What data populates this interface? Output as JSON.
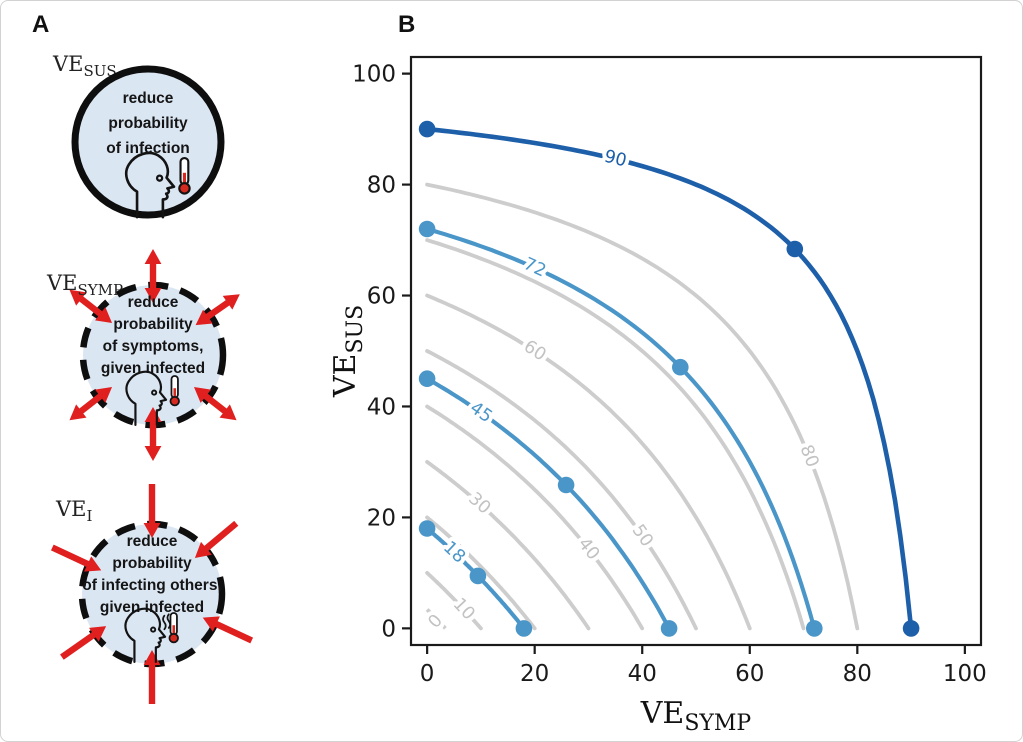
{
  "figure": {
    "panel_a_label": "A",
    "panel_b_label": "B"
  },
  "panel_a": {
    "items": [
      {
        "title_main": "VE",
        "title_sub": "SUS",
        "border": "solid",
        "lines": [
          "reduce",
          "probability",
          "of infection"
        ],
        "icon": "head-with-thermometer",
        "arrows": {
          "type": "none",
          "angles": []
        }
      },
      {
        "title_main": "VE",
        "title_sub": "SYMP",
        "border": "dashed",
        "lines": [
          "reduce",
          "probability",
          "of symptoms,",
          "given infected"
        ],
        "icon": "head-with-thermometer",
        "arrows": {
          "type": "outward-double",
          "angles": [
            90,
            35,
            142,
            218,
            270,
            322
          ]
        }
      },
      {
        "title_main": "VE",
        "title_sub": "I",
        "border": "dashed",
        "lines": [
          "reduce",
          "probability",
          "of infecting others,",
          "given infected"
        ],
        "icon": "head-with-thermometer-fever",
        "arrows": {
          "type": "inward",
          "angles": [
            90,
            40,
            -25,
            155,
            215,
            270
          ]
        }
      }
    ],
    "colors": {
      "circle_fill": "#dbe6f3",
      "circle_stroke": "#0e0e0e",
      "arrow_red": "#e01f1f",
      "thermometer_red": "#d42a20",
      "text": "#151515"
    }
  },
  "chart_data": {
    "type": "contour",
    "title": "",
    "xlabel_main": "VE",
    "xlabel_sub": "SYMP",
    "ylabel_main": "VE",
    "ylabel_sub": "SUS",
    "xticks": [
      0,
      20,
      40,
      60,
      80,
      100
    ],
    "yticks": [
      0,
      20,
      40,
      60,
      80,
      100
    ],
    "xlim": [
      -3,
      103
    ],
    "ylim": [
      -3,
      103
    ],
    "grid": false,
    "contours": [
      {
        "level": 10,
        "style": "gray",
        "label": "10",
        "label_x": 6.8
      },
      {
        "level": 20,
        "style": "gray",
        "label": null,
        "label_x": null
      },
      {
        "level": 30,
        "style": "gray",
        "label": "30",
        "label_x": 9.7
      },
      {
        "level": 40,
        "style": "gray",
        "label": "40",
        "label_x": 30
      },
      {
        "level": 50,
        "style": "gray",
        "label": "50",
        "label_x": 40
      },
      {
        "level": 60,
        "style": "gray",
        "label": "60",
        "label_x": 20
      },
      {
        "level": 70,
        "style": "gray",
        "label": null,
        "label_x": null
      },
      {
        "level": 80,
        "style": "gray",
        "label": "80",
        "label_x": 71
      },
      {
        "level": 18,
        "style": "blue",
        "label": "18",
        "label_x": 5,
        "dots": [
          [
            0,
            18
          ],
          [
            9.45,
            9.45
          ],
          [
            18,
            0
          ]
        ]
      },
      {
        "level": 45,
        "style": "blue",
        "label": "45",
        "label_x": 10,
        "dots": [
          [
            0,
            45
          ],
          [
            25.84,
            25.84
          ],
          [
            45,
            0
          ]
        ]
      },
      {
        "level": 72,
        "style": "blue",
        "label": "72",
        "label_x": 20,
        "dots": [
          [
            0,
            72
          ],
          [
            47.08,
            47.08
          ],
          [
            72,
            0
          ]
        ]
      },
      {
        "level": 90,
        "style": "dark_blue",
        "label": "90",
        "label_x": 35,
        "dots": [
          [
            0,
            90
          ],
          [
            68.38,
            68.38
          ],
          [
            90,
            0
          ]
        ]
      }
    ],
    "zero_label": {
      "text": "0",
      "x": 1.6,
      "y": 1.2,
      "angle": -48
    },
    "colors": {
      "gray": "#cdcdcd",
      "gray_label": "#c2c2c2",
      "blue": "#4a96c8",
      "dark_blue": "#1e5fa9",
      "axis": "#1a1a1a"
    }
  }
}
